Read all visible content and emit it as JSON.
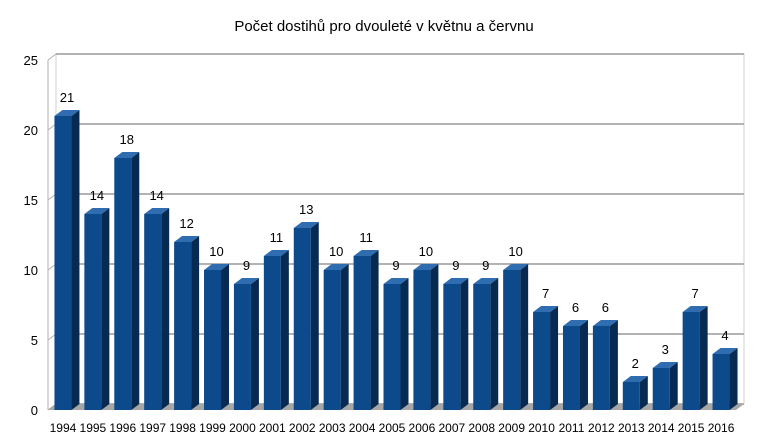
{
  "chart_data": {
    "type": "bar",
    "title": "Počet dostihů pro dvouleté v květnu a červnu",
    "categories": [
      "1994",
      "1995",
      "1996",
      "1997",
      "1998",
      "1999",
      "2000",
      "2001",
      "2002",
      "2003",
      "2004",
      "2005",
      "2006",
      "2007",
      "2008",
      "2009",
      "2010",
      "2011",
      "2012",
      "2013",
      "2014",
      "2015",
      "2016"
    ],
    "series": [
      {
        "values": [
          21,
          14,
          18,
          14,
          12,
          10,
          9,
          11,
          13,
          10,
          11,
          9,
          10,
          9,
          9,
          10,
          7,
          6,
          6,
          2,
          3,
          7,
          4
        ]
      }
    ],
    "data_labels": [
      "21",
      "14",
      "18",
      "14",
      "12",
      "10",
      "9",
      "11",
      "13",
      "10",
      "11",
      "9",
      "10",
      "9",
      "9",
      "10",
      "7",
      "6",
      "6",
      "2",
      "3",
      "7",
      "4"
    ],
    "yticks": [
      "0",
      "5",
      "10",
      "15",
      "20",
      "25"
    ],
    "ylim": [
      0,
      25
    ],
    "grid": true,
    "legend": "none",
    "xlabel": "",
    "ylabel": "",
    "colors": {
      "bar_front": "#0d4a8c",
      "bar_side": "#072a52",
      "bar_top": "#2f6db0",
      "gridline": "#b3b3b3",
      "floor": "#a6a6a6",
      "wall": "#ffffff"
    }
  }
}
